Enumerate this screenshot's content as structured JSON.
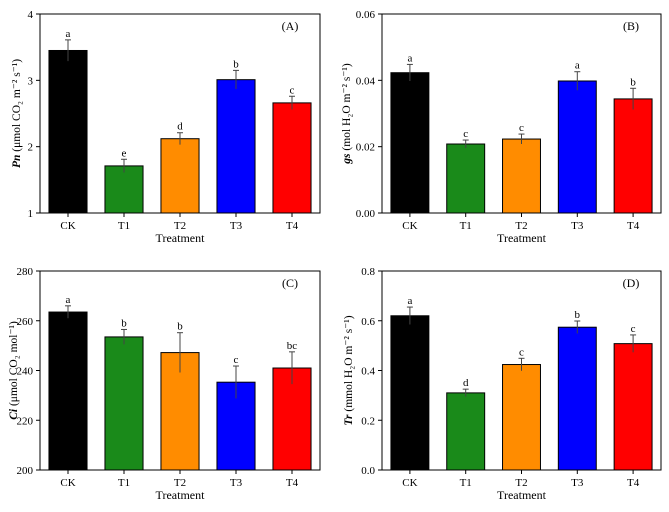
{
  "chart_data": [
    {
      "type": "bar",
      "panel": "(A)",
      "categories": [
        "CK",
        "T1",
        "T2",
        "T3",
        "T4"
      ],
      "values": [
        3.45,
        1.71,
        2.12,
        3.01,
        2.66
      ],
      "errors": [
        0.16,
        0.1,
        0.09,
        0.14,
        0.1
      ],
      "letters": [
        "a",
        "e",
        "d",
        "b",
        "c"
      ],
      "colors": [
        "#000000",
        "#1a8a1a",
        "#ff8c00",
        "#0000ff",
        "#ff0000"
      ],
      "xlabel": "Treatment",
      "ylabel_main": "Pn",
      "ylabel_unit": "(μmol CO₂ m⁻² s⁻¹)",
      "ylim": [
        1,
        4
      ],
      "yticks": [
        1,
        2,
        3,
        4
      ],
      "ytick_labels": [
        "1",
        "2",
        "3",
        "4"
      ]
    },
    {
      "type": "bar",
      "panel": "(B)",
      "categories": [
        "CK",
        "T1",
        "T2",
        "T3",
        "T4"
      ],
      "values": [
        0.0423,
        0.0208,
        0.0223,
        0.0398,
        0.0344
      ],
      "errors": [
        0.0025,
        0.0012,
        0.0015,
        0.0028,
        0.0032
      ],
      "letters": [
        "a",
        "c",
        "c",
        "a",
        "b"
      ],
      "colors": [
        "#000000",
        "#1a8a1a",
        "#ff8c00",
        "#0000ff",
        "#ff0000"
      ],
      "xlabel": "Treatment",
      "ylabel_main": "gs",
      "ylabel_unit": "(mol H₂O m⁻² s⁻¹)",
      "ylim": [
        0,
        0.06
      ],
      "yticks": [
        0,
        0.02,
        0.04,
        0.06
      ],
      "ytick_labels": [
        "0.00",
        "0.02",
        "0.04",
        "0.06"
      ]
    },
    {
      "type": "bar",
      "panel": "(C)",
      "categories": [
        "CK",
        "T1",
        "T2",
        "T3",
        "T4"
      ],
      "values": [
        263.5,
        253.5,
        247.2,
        235.3,
        241.0
      ],
      "errors": [
        2.5,
        3.0,
        8.0,
        6.5,
        6.5
      ],
      "letters": [
        "a",
        "b",
        "b",
        "c",
        "bc"
      ],
      "colors": [
        "#000000",
        "#1a8a1a",
        "#ff8c00",
        "#0000ff",
        "#ff0000"
      ],
      "xlabel": "Treatment",
      "ylabel_main": "Ci",
      "ylabel_unit": "(μmol CO₂ mol⁻¹)",
      "ylim": [
        200,
        280
      ],
      "yticks": [
        200,
        220,
        240,
        260,
        280
      ],
      "ytick_labels": [
        "200",
        "220",
        "240",
        "260",
        "280"
      ]
    },
    {
      "type": "bar",
      "panel": "(D)",
      "categories": [
        "CK",
        "T1",
        "T2",
        "T3",
        "T4"
      ],
      "values": [
        0.62,
        0.31,
        0.424,
        0.574,
        0.508
      ],
      "errors": [
        0.035,
        0.015,
        0.025,
        0.025,
        0.035
      ],
      "letters": [
        "a",
        "d",
        "c",
        "b",
        "c"
      ],
      "colors": [
        "#000000",
        "#1a8a1a",
        "#ff8c00",
        "#0000ff",
        "#ff0000"
      ],
      "xlabel": "Treatment",
      "ylabel_main": "Tr",
      "ylabel_unit": "(mmol H₂O m⁻² s⁻¹)",
      "ylim": [
        0,
        0.8
      ],
      "yticks": [
        0,
        0.2,
        0.4,
        0.6,
        0.8
      ],
      "ytick_labels": [
        "0.0",
        "0.2",
        "0.4",
        "0.6",
        "0.8"
      ]
    }
  ]
}
